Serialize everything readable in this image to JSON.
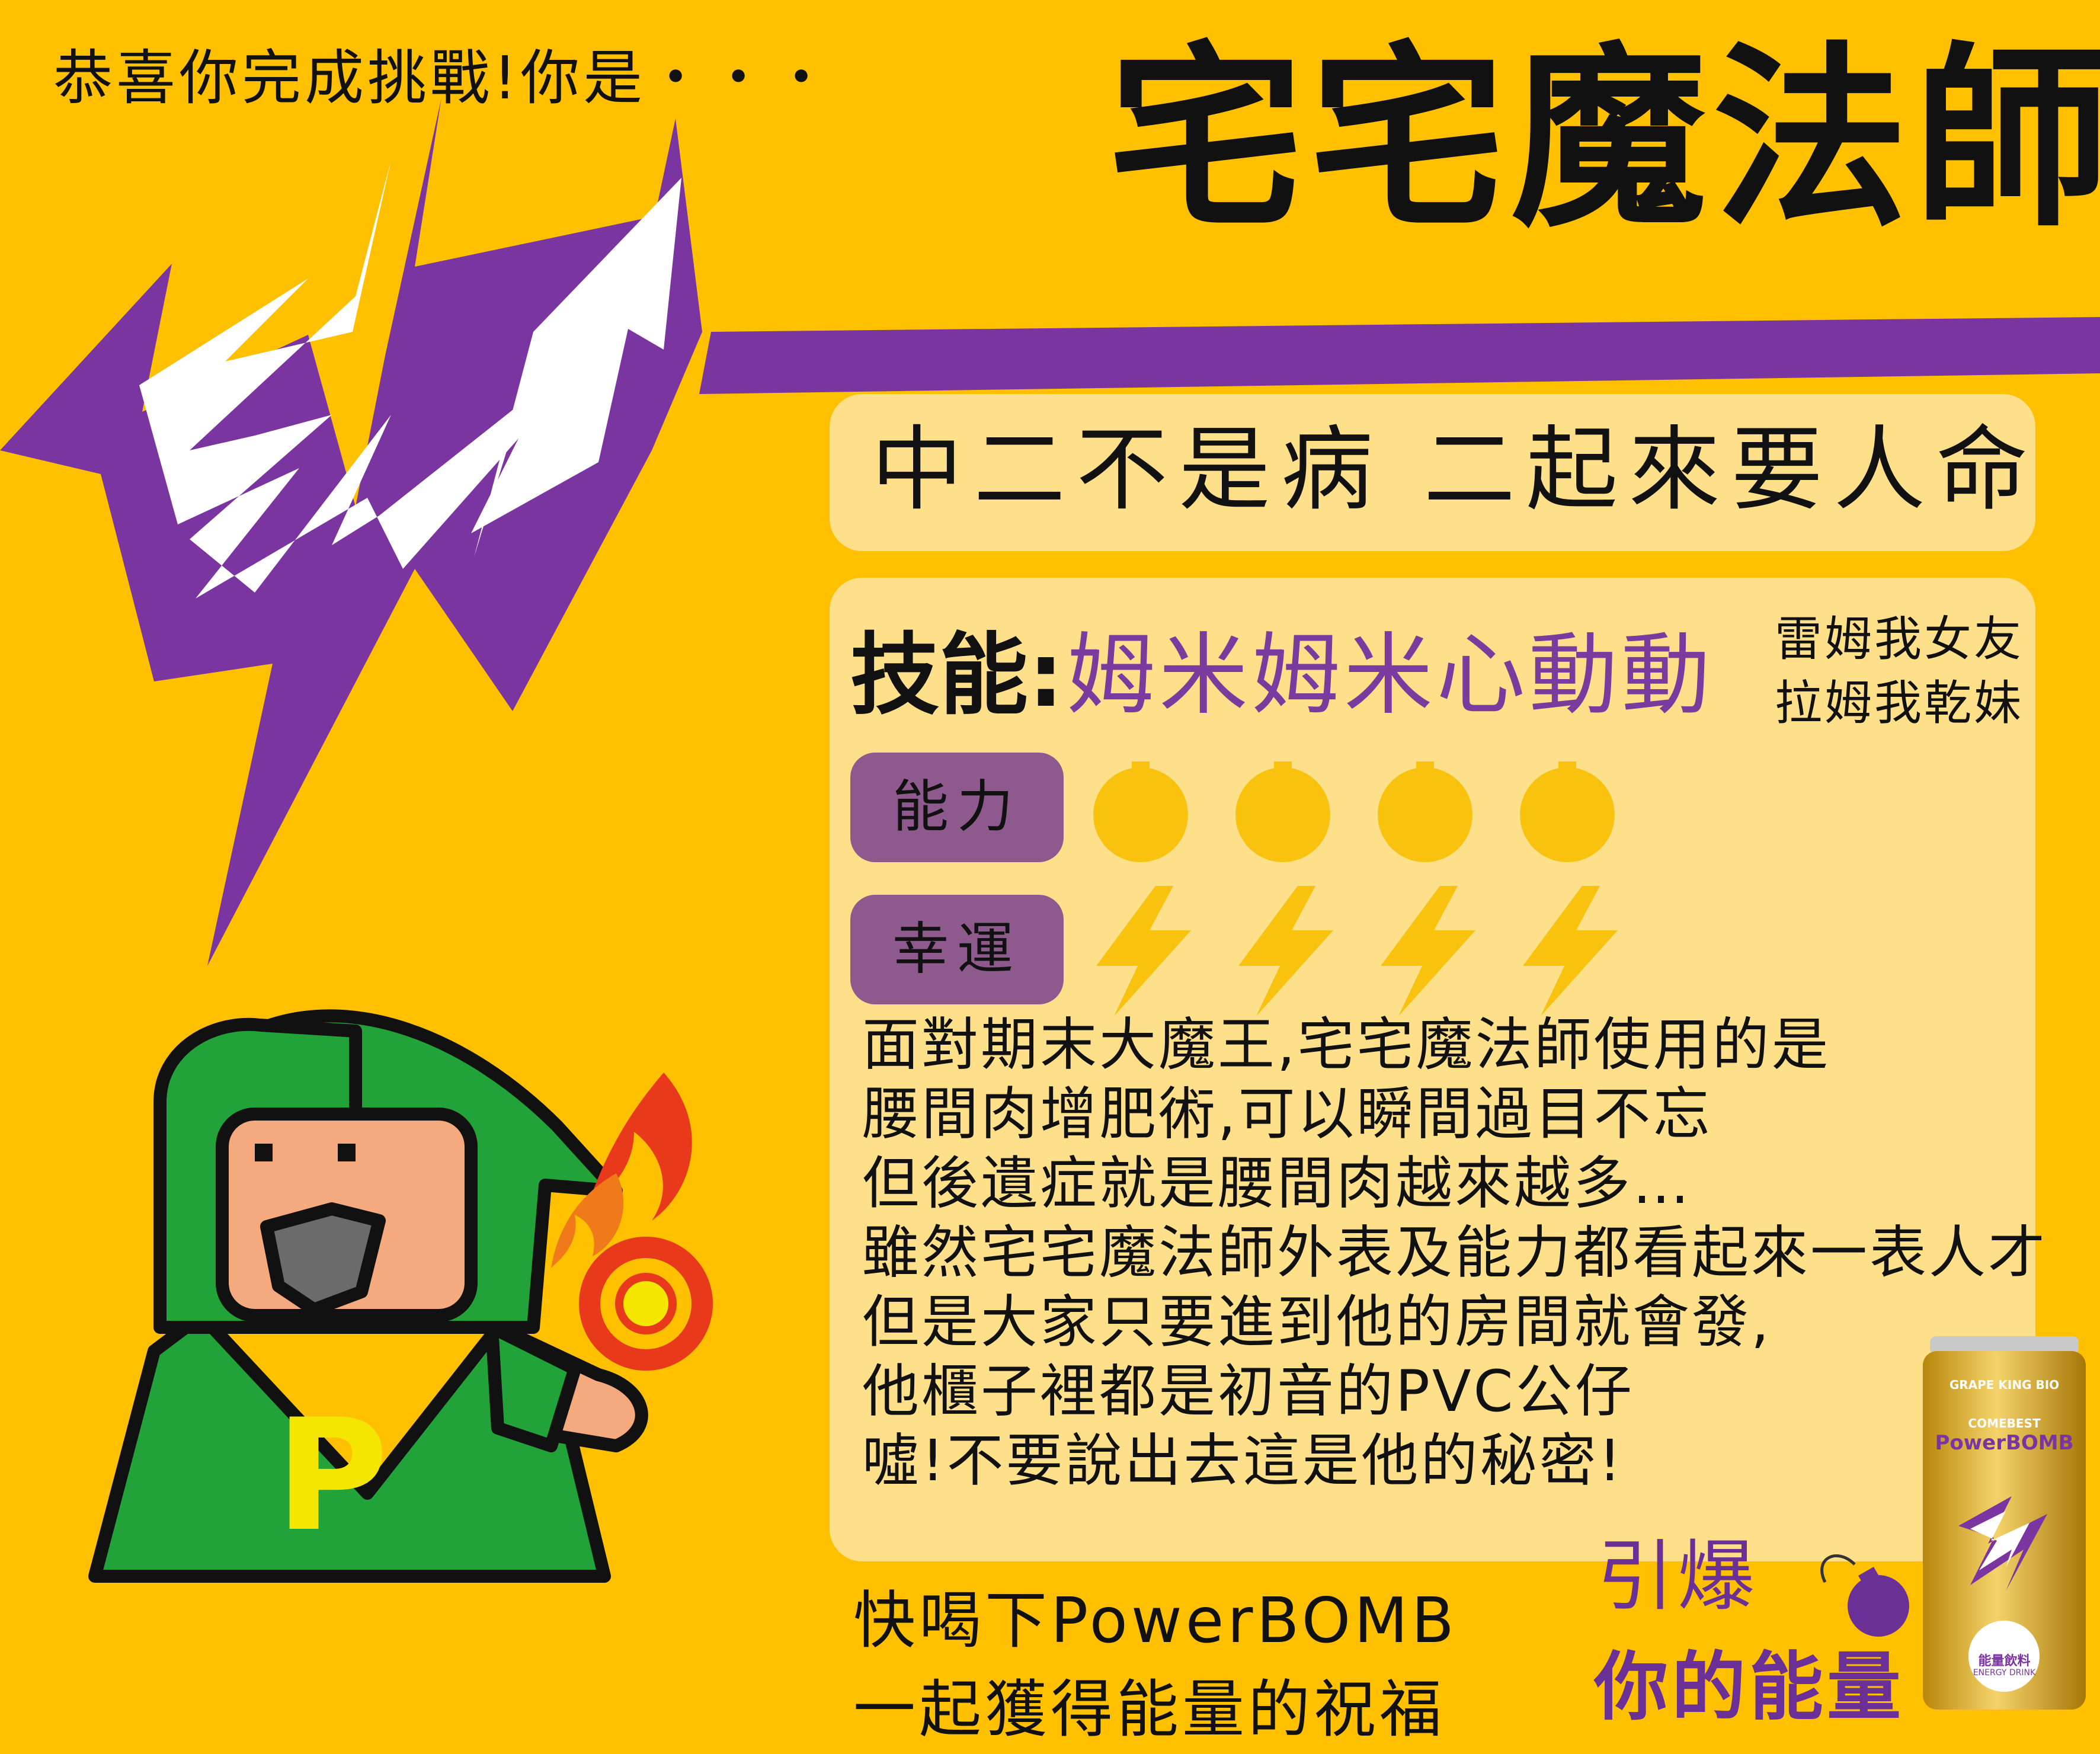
{
  "header": {
    "intro": "恭喜你完成挑戰!你是・・・",
    "title": "宅宅魔法師"
  },
  "motto": "中二不是病 二起來要人命",
  "skill": {
    "label": "技能:",
    "name": "姆米姆米心動動",
    "quote_line1": "雷姆我女友",
    "quote_line2": "拉姆我乾妹"
  },
  "stats": [
    {
      "label": "能力",
      "icon": "bomb-icon",
      "rating": 4,
      "max": 4
    },
    {
      "label": "幸運",
      "icon": "lightning-icon",
      "rating": 4,
      "max": 4
    }
  ],
  "description": [
    "面對期末大魔王,宅宅魔法師使用的是",
    "腰間肉增肥術,可以瞬間過目不忘",
    "但後遺症就是腰間肉越來越多…",
    "雖然宅宅魔法師外表及能力都看起來一表人才",
    "但是大家只要進到他的房間就會發,",
    "他櫃子裡都是初音的PVC公仔",
    "噓!不要說出去這是他的秘密!"
  ],
  "footer": {
    "line1": "快喝下PowerBOMB",
    "line2": "一起獲得能量的祝福"
  },
  "slogan": {
    "line1": "引爆",
    "line2": "你的能量"
  },
  "product": {
    "brand": "GRAPE KING BIO",
    "sub": "COMEBEST",
    "name": "PowerBOMB",
    "label_zh": "能量飲料",
    "label_en": "ENERGY DRINK"
  },
  "wizard": {
    "chest_letter": "P"
  },
  "colors": {
    "background": "#FFC000",
    "purple": "#7B3A9E",
    "panel": "#FFE08A",
    "tag": "#8E5A8E",
    "wizard_green": "#22A33A",
    "icon_yellow": "#F8C20E"
  }
}
